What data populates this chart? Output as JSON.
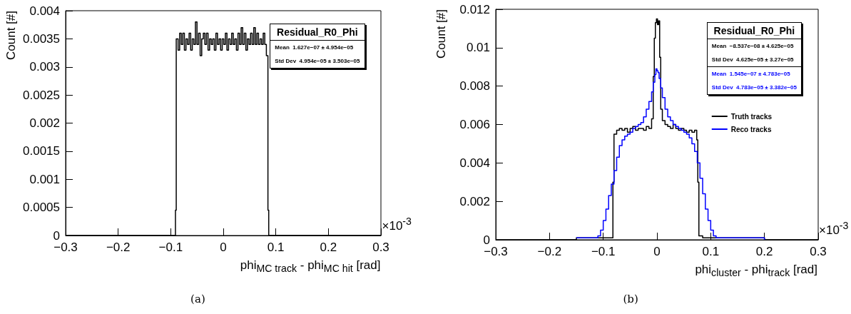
{
  "chart_data": [
    {
      "type": "step",
      "title": "Residual_R0_Phi",
      "xlabel": "phi$_{MC track}$ - phi$_{MC hit}$ [rad]",
      "ylabel": "Count [#]",
      "xlim": [
        -0.3,
        0.3
      ],
      "xticks": [
        {
          "value": -0.3,
          "label": "−0.3"
        },
        {
          "value": -0.2,
          "label": "−0.2"
        },
        {
          "value": -0.1,
          "label": "−0.1"
        },
        0,
        0.1,
        0.2,
        0.3
      ],
      "ylim": [
        0,
        0.004
      ],
      "yticks": [
        0,
        0.0005,
        0.001,
        0.0015,
        0.002,
        0.0025,
        0.003,
        0.0035,
        0.004
      ],
      "x": [
        -0.3,
        -0.091,
        -0.0895,
        -0.086,
        -0.083,
        -0.08,
        -0.077,
        -0.074,
        -0.071,
        -0.068,
        -0.065,
        -0.062,
        -0.059,
        -0.056,
        -0.053,
        -0.05,
        -0.047,
        -0.044,
        -0.041,
        -0.038,
        -0.035,
        -0.032,
        -0.029,
        -0.026,
        -0.023,
        -0.02,
        -0.017,
        -0.014,
        -0.011,
        -0.008,
        -0.005,
        -0.002,
        0.001,
        0.004,
        0.007,
        0.01,
        0.013,
        0.016,
        0.019,
        0.022,
        0.025,
        0.028,
        0.031,
        0.034,
        0.037,
        0.04,
        0.043,
        0.046,
        0.049,
        0.052,
        0.055,
        0.058,
        0.061,
        0.064,
        0.067,
        0.07,
        0.073,
        0.076,
        0.079,
        0.082,
        0.085,
        0.0865,
        0.3
      ],
      "series": [
        {
          "color": "#000000",
          "values": [
            0,
            0.00045,
            0.0035,
            0.0033,
            0.0036,
            0.0034,
            0.0036,
            0.0033,
            0.0035,
            0.0034,
            0.0036,
            0.0033,
            0.0035,
            0.0034,
            0.0038,
            0.0034,
            0.0036,
            0.0032,
            0.0035,
            0.0036,
            0.0034,
            0.0036,
            0.0033,
            0.0035,
            0.0034,
            0.0035,
            0.0033,
            0.0036,
            0.0034,
            0.0035,
            0.0033,
            0.0035,
            0.0034,
            0.0036,
            0.0033,
            0.0035,
            0.0034,
            0.0036,
            0.0034,
            0.0035,
            0.0033,
            0.0036,
            0.0034,
            0.0037,
            0.0034,
            0.0036,
            0.0033,
            0.0035,
            0.0034,
            0.0036,
            0.0034,
            0.0037,
            0.0034,
            0.0036,
            0.0034,
            0.0035,
            0.0034,
            0.0036,
            0.0034,
            0.0032,
            0.00045,
            0,
            0
          ]
        }
      ],
      "annotations": [
        "Mean  1.627e−07 ± 4.954e−05",
        "Std Dev  4.954e−05 ± 3.503e−05",
        "×10$^{-3}$",
        "(a)"
      ]
    },
    {
      "type": "step",
      "title": "Residual_R0_Phi",
      "xlabel": "phi$_{cluster}$ - phi$_{track}$ [rad]",
      "ylabel": "Count [#]",
      "xlim": [
        -0.3,
        0.3
      ],
      "xticks": [
        {
          "value": -0.3,
          "label": "−0.3"
        },
        {
          "value": -0.2,
          "label": "−0.2"
        },
        {
          "value": -0.1,
          "label": "−0.1"
        },
        0,
        0.1,
        0.2,
        0.3
      ],
      "ylim": [
        0,
        0.012
      ],
      "yticks": [
        0,
        0.002,
        0.004,
        0.006,
        0.008,
        0.01,
        0.012
      ],
      "legend": "top right",
      "series": [
        {
          "name": "Truth tracks",
          "color": "#000000",
          "x": [
            -0.3,
            -0.2,
            -0.15,
            -0.1,
            -0.085,
            -0.082,
            -0.08,
            -0.075,
            -0.07,
            -0.065,
            -0.06,
            -0.055,
            -0.05,
            -0.045,
            -0.04,
            -0.035,
            -0.03,
            -0.025,
            -0.02,
            -0.015,
            -0.01,
            -0.007,
            -0.005,
            -0.003,
            -0.001,
            0.001,
            0.003,
            0.005,
            0.007,
            0.01,
            0.015,
            0.02,
            0.025,
            0.03,
            0.035,
            0.04,
            0.045,
            0.05,
            0.055,
            0.06,
            0.065,
            0.07,
            0.074,
            0.076,
            0.078,
            0.085,
            0.12,
            0.2,
            0.3
          ],
          "values": [
            0,
            0,
            0.0001,
            0.0001,
            0.0001,
            0.003,
            0.0055,
            0.0057,
            0.0058,
            0.0057,
            0.0058,
            0.0056,
            0.0058,
            0.0059,
            0.0057,
            0.0058,
            0.0058,
            0.0057,
            0.0059,
            0.0058,
            0.0063,
            0.0085,
            0.0105,
            0.0113,
            0.0115,
            0.0112,
            0.0114,
            0.0095,
            0.0068,
            0.0062,
            0.006,
            0.0059,
            0.0058,
            0.006,
            0.0058,
            0.0057,
            0.0058,
            0.0057,
            0.0056,
            0.0057,
            0.0056,
            0.0057,
            0.0052,
            0.003,
            0.0002,
            0.0001,
            0.0001,
            0,
            0
          ]
        },
        {
          "name": "Reco tracks",
          "color": "#0000ff",
          "x": [
            -0.15,
            -0.12,
            -0.11,
            -0.105,
            -0.1,
            -0.095,
            -0.09,
            -0.085,
            -0.08,
            -0.075,
            -0.07,
            -0.065,
            -0.06,
            -0.055,
            -0.05,
            -0.045,
            -0.04,
            -0.035,
            -0.03,
            -0.025,
            -0.02,
            -0.015,
            -0.01,
            -0.007,
            -0.004,
            -0.002,
            0,
            0.002,
            0.004,
            0.007,
            0.01,
            0.015,
            0.02,
            0.025,
            0.03,
            0.035,
            0.04,
            0.045,
            0.05,
            0.055,
            0.06,
            0.065,
            0.07,
            0.075,
            0.08,
            0.085,
            0.09,
            0.095,
            0.1,
            0.105,
            0.11,
            0.15,
            0.2
          ],
          "values": [
            0.0001,
            0.0001,
            0.0002,
            0.0005,
            0.001,
            0.0016,
            0.0023,
            0.0029,
            0.0036,
            0.0043,
            0.0049,
            0.0052,
            0.0054,
            0.0055,
            0.0056,
            0.0058,
            0.0059,
            0.006,
            0.0061,
            0.0064,
            0.0068,
            0.0072,
            0.0077,
            0.0082,
            0.0086,
            0.0089,
            0.0088,
            0.0087,
            0.0084,
            0.0079,
            0.0074,
            0.0068,
            0.0064,
            0.0062,
            0.006,
            0.0059,
            0.0058,
            0.0057,
            0.0056,
            0.0055,
            0.0053,
            0.005,
            0.0046,
            0.004,
            0.0032,
            0.0024,
            0.0016,
            0.001,
            0.0005,
            0.0002,
            0.0001,
            0.0001,
            0
          ]
        }
      ],
      "annotations": [
        "Mean  −8.537e−08 ± 4.625e−05",
        "Std Dev  4.625e−05 ± 3.27e−05",
        "Mean  1.545e−07 ± 4.783e−05",
        "Std Dev  4.783e−05 ± 3.382e−05",
        "×10$^{-3}$",
        "(b)"
      ]
    }
  ]
}
